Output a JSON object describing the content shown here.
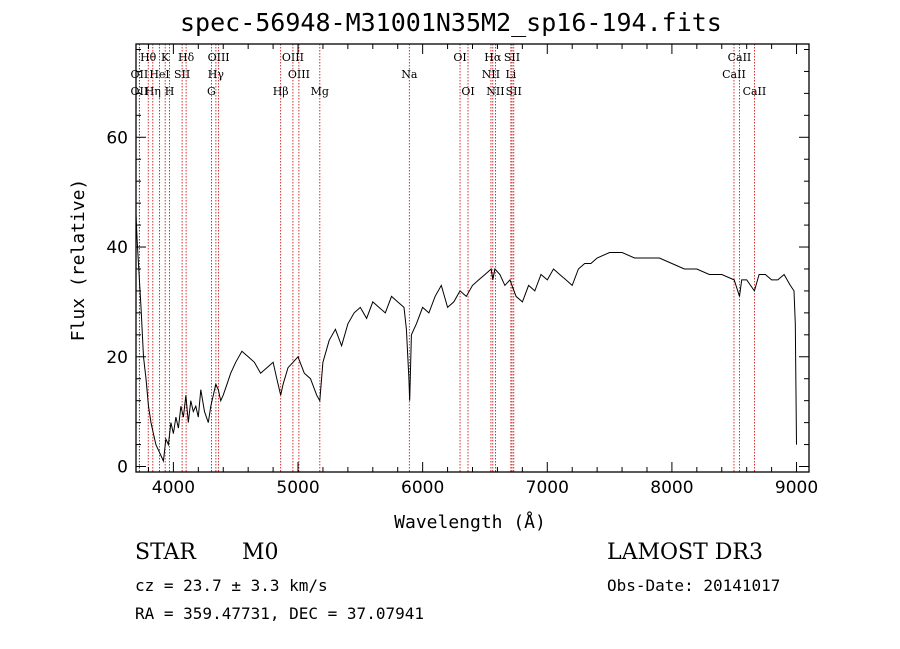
{
  "title": "spec-56948-M31001N35M2_sp16-194.fits",
  "chart_data": {
    "type": "line",
    "title": "spec-56948-M31001N35M2_sp16-194.fits",
    "xlabel": "Wavelength (Å)",
    "ylabel": "Flux (relative)",
    "xlim": [
      3700,
      9100
    ],
    "ylim": [
      -1,
      77
    ],
    "x_ticks": [
      4000,
      5000,
      6000,
      7000,
      8000,
      9000
    ],
    "y_ticks": [
      0,
      20,
      40,
      60
    ],
    "series": [
      {
        "name": "flux",
        "x": [
          3700,
          3710,
          3725,
          3740,
          3760,
          3780,
          3800,
          3820,
          3840,
          3860,
          3880,
          3900,
          3920,
          3940,
          3960,
          3980,
          4000,
          4020,
          4040,
          4060,
          4080,
          4100,
          4120,
          4140,
          4160,
          4180,
          4200,
          4220,
          4250,
          4280,
          4300,
          4320,
          4340,
          4360,
          4380,
          4400,
          4430,
          4460,
          4500,
          4550,
          4600,
          4650,
          4700,
          4750,
          4800,
          4830,
          4861,
          4880,
          4920,
          4960,
          5000,
          5050,
          5100,
          5150,
          5175,
          5200,
          5250,
          5300,
          5350,
          5400,
          5450,
          5500,
          5550,
          5600,
          5650,
          5700,
          5750,
          5800,
          5850,
          5870,
          5890,
          5896,
          5910,
          5950,
          6000,
          6050,
          6100,
          6150,
          6200,
          6250,
          6300,
          6350,
          6400,
          6450,
          6500,
          6550,
          6563,
          6580,
          6620,
          6660,
          6700,
          6750,
          6800,
          6850,
          6900,
          6950,
          7000,
          7050,
          7100,
          7150,
          7200,
          7250,
          7300,
          7350,
          7400,
          7500,
          7600,
          7700,
          7800,
          7900,
          8000,
          8100,
          8200,
          8300,
          8400,
          8500,
          8542,
          8560,
          8600,
          8662,
          8700,
          8750,
          8800,
          8850,
          8900,
          8950,
          8980,
          8990,
          9000
        ],
        "values": [
          46,
          41,
          35,
          29,
          20,
          16,
          11,
          8,
          6,
          4,
          3,
          2,
          1,
          5,
          4,
          8,
          6,
          9,
          7,
          11,
          9,
          13,
          8,
          12,
          10,
          11,
          9,
          14,
          10,
          8,
          11,
          13,
          15,
          14,
          12,
          13,
          15,
          17,
          19,
          21,
          20,
          19,
          17,
          18,
          19,
          16,
          13,
          15,
          18,
          19,
          20,
          17,
          16,
          13,
          12,
          19,
          23,
          25,
          22,
          26,
          28,
          29,
          27,
          30,
          29,
          28,
          31,
          30,
          29,
          25,
          16,
          12,
          24,
          26,
          29,
          28,
          31,
          33,
          29,
          30,
          32,
          31,
          33,
          34,
          35,
          36,
          34,
          36,
          35,
          33,
          34,
          31,
          30,
          33,
          32,
          35,
          34,
          36,
          35,
          34,
          33,
          36,
          37,
          37,
          38,
          39,
          39,
          38,
          38,
          38,
          37,
          36,
          36,
          35,
          35,
          34,
          31,
          34,
          34,
          32,
          35,
          35,
          34,
          34,
          35,
          33,
          32,
          26,
          4
        ]
      }
    ],
    "annotations": [
      {
        "label": "Hθ",
        "x": 3798,
        "row": 0
      },
      {
        "label": "OII",
        "x": 3727,
        "row": 1
      },
      {
        "label": "OII",
        "x": 3727,
        "row": 2
      },
      {
        "label": "K",
        "x": 3934,
        "row": 0
      },
      {
        "label": "HeI",
        "x": 3889,
        "row": 1
      },
      {
        "label": "Hη",
        "x": 3835,
        "row": 2
      },
      {
        "label": "SII",
        "x": 4070,
        "row": 1
      },
      {
        "label": "H",
        "x": 3969,
        "row": 2
      },
      {
        "label": "Hδ",
        "x": 4102,
        "row": 0
      },
      {
        "label": "OIII",
        "x": 4363,
        "row": 0
      },
      {
        "label": "Hγ",
        "x": 4341,
        "row": 1
      },
      {
        "label": "G",
        "x": 4305,
        "row": 2
      },
      {
        "label": "Hβ",
        "x": 4861,
        "row": 2
      },
      {
        "label": "OIII",
        "x": 4959,
        "row": 0
      },
      {
        "label": "OIII",
        "x": 5007,
        "row": 1
      },
      {
        "label": "Mg",
        "x": 5175,
        "row": 2
      },
      {
        "label": "Na",
        "x": 5893,
        "row": 1
      },
      {
        "label": "OI",
        "x": 6300,
        "row": 0
      },
      {
        "label": "OI",
        "x": 6364,
        "row": 2
      },
      {
        "label": "Hα",
        "x": 6563,
        "row": 0
      },
      {
        "label": "NII",
        "x": 6548,
        "row": 1
      },
      {
        "label": "NII",
        "x": 6584,
        "row": 2
      },
      {
        "label": "SII",
        "x": 6717,
        "row": 0
      },
      {
        "label": "Li",
        "x": 6708,
        "row": 1
      },
      {
        "label": "SII",
        "x": 6731,
        "row": 2
      },
      {
        "label": "CaII",
        "x": 8542,
        "row": 0
      },
      {
        "label": "CaII",
        "x": 8498,
        "row": 1
      },
      {
        "label": "CaII",
        "x": 8662,
        "row": 2
      }
    ]
  },
  "info": {
    "class_label": "STAR",
    "subclass_label": "M0",
    "survey": "LAMOST DR3",
    "redshift": "cz = 23.7 ± 3.3 km/s",
    "obs_date": "Obs-Date: 20141017",
    "coords": "RA = 359.47731, DEC =  37.07941"
  },
  "colors": {
    "line": "#000000",
    "marker": "#c00000"
  }
}
